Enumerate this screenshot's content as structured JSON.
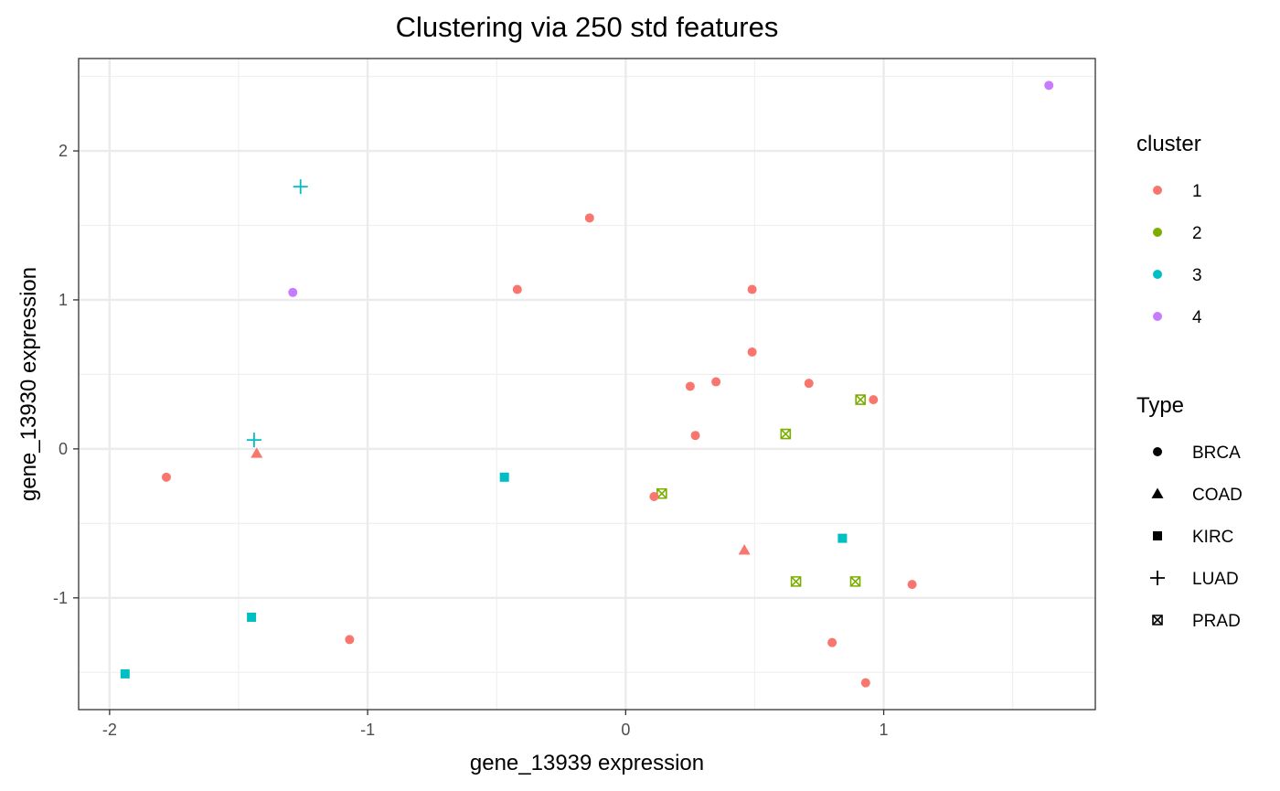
{
  "chart_data": {
    "type": "scatter",
    "title": "Clustering via 250 std features",
    "xlabel": "gene_13939 expression",
    "ylabel": "gene_13930 expression",
    "xlim": [
      -2.12,
      1.82
    ],
    "ylim": [
      -1.75,
      2.62
    ],
    "x_ticks": [
      -2,
      -1,
      0,
      1
    ],
    "y_ticks": [
      -1,
      0,
      1,
      2
    ],
    "x_tick_labels": [
      "-2",
      "-1",
      "0",
      "1"
    ],
    "y_tick_labels": [
      "-1",
      "0",
      "1",
      "2"
    ],
    "grid": true,
    "legend_position": "right",
    "cluster_legend": {
      "title": "cluster",
      "items": [
        {
          "label": "1",
          "color": "#F8766D"
        },
        {
          "label": "2",
          "color": "#7CAE00"
        },
        {
          "label": "3",
          "color": "#00BFC4"
        },
        {
          "label": "4",
          "color": "#C77CFF"
        }
      ]
    },
    "type_legend": {
      "title": "Type",
      "items": [
        {
          "label": "BRCA",
          "shape": "circle"
        },
        {
          "label": "COAD",
          "shape": "triangle"
        },
        {
          "label": "KIRC",
          "shape": "square"
        },
        {
          "label": "LUAD",
          "shape": "plus"
        },
        {
          "label": "PRAD",
          "shape": "boxx"
        }
      ]
    },
    "points": [
      {
        "x": 1.64,
        "y": 2.44,
        "cluster": "4",
        "type": "BRCA"
      },
      {
        "x": -1.29,
        "y": 1.05,
        "cluster": "4",
        "type": "BRCA"
      },
      {
        "x": -1.26,
        "y": 1.76,
        "cluster": "3",
        "type": "LUAD"
      },
      {
        "x": -1.44,
        "y": 0.06,
        "cluster": "3",
        "type": "LUAD"
      },
      {
        "x": -0.47,
        "y": -0.19,
        "cluster": "3",
        "type": "KIRC"
      },
      {
        "x": 0.84,
        "y": -0.6,
        "cluster": "3",
        "type": "KIRC"
      },
      {
        "x": -1.45,
        "y": -1.13,
        "cluster": "3",
        "type": "KIRC"
      },
      {
        "x": -1.94,
        "y": -1.51,
        "cluster": "3",
        "type": "KIRC"
      },
      {
        "x": 0.91,
        "y": 0.33,
        "cluster": "2",
        "type": "PRAD"
      },
      {
        "x": 0.62,
        "y": 0.1,
        "cluster": "2",
        "type": "PRAD"
      },
      {
        "x": 0.14,
        "y": -0.3,
        "cluster": "2",
        "type": "PRAD"
      },
      {
        "x": 0.66,
        "y": -0.89,
        "cluster": "2",
        "type": "PRAD"
      },
      {
        "x": 0.89,
        "y": -0.89,
        "cluster": "2",
        "type": "PRAD"
      },
      {
        "x": -0.14,
        "y": 1.55,
        "cluster": "1",
        "type": "BRCA"
      },
      {
        "x": -0.42,
        "y": 1.07,
        "cluster": "1",
        "type": "BRCA"
      },
      {
        "x": 0.49,
        "y": 1.07,
        "cluster": "1",
        "type": "BRCA"
      },
      {
        "x": 0.49,
        "y": 0.65,
        "cluster": "1",
        "type": "BRCA"
      },
      {
        "x": 0.25,
        "y": 0.42,
        "cluster": "1",
        "type": "BRCA"
      },
      {
        "x": 0.35,
        "y": 0.45,
        "cluster": "1",
        "type": "BRCA"
      },
      {
        "x": 0.71,
        "y": 0.44,
        "cluster": "1",
        "type": "BRCA"
      },
      {
        "x": 0.96,
        "y": 0.33,
        "cluster": "1",
        "type": "BRCA"
      },
      {
        "x": 0.27,
        "y": 0.09,
        "cluster": "1",
        "type": "BRCA"
      },
      {
        "x": 0.11,
        "y": -0.32,
        "cluster": "1",
        "type": "BRCA"
      },
      {
        "x": -1.78,
        "y": -0.19,
        "cluster": "1",
        "type": "BRCA"
      },
      {
        "x": -1.43,
        "y": -0.03,
        "cluster": "1",
        "type": "COAD"
      },
      {
        "x": 0.46,
        "y": -0.68,
        "cluster": "1",
        "type": "COAD"
      },
      {
        "x": 1.11,
        "y": -0.91,
        "cluster": "1",
        "type": "BRCA"
      },
      {
        "x": -1.07,
        "y": -1.28,
        "cluster": "1",
        "type": "BRCA"
      },
      {
        "x": 0.8,
        "y": -1.3,
        "cluster": "1",
        "type": "BRCA"
      },
      {
        "x": 0.93,
        "y": -1.57,
        "cluster": "1",
        "type": "BRCA"
      }
    ]
  }
}
